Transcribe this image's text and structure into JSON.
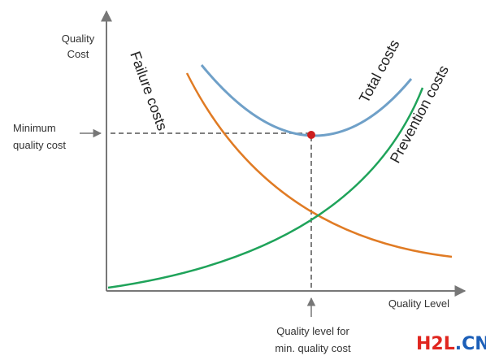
{
  "axes": {
    "y_label_line1": "Quality",
    "y_label_line2": "Cost",
    "x_label": "Quality Level"
  },
  "annotations": {
    "min_cost_line1": "Minimum",
    "min_cost_line2": "quality cost",
    "min_level_line1": "Quality level for",
    "min_level_line2": "min. quality cost"
  },
  "curves": {
    "failure": {
      "label": "Failure costs",
      "color": "#E07B24"
    },
    "total": {
      "label": "Total costs",
      "color": "#6FA0C8"
    },
    "prevention": {
      "label": "Prevention costs",
      "color": "#1FA35A"
    }
  },
  "colors": {
    "axis": "#777777",
    "dashed": "#555555",
    "minimum_point": "#CC1F1F"
  },
  "watermark": {
    "part1": "H2L",
    "part2": ".CN",
    "color1": "#E0261F",
    "color2": "#1C5FB8"
  }
}
